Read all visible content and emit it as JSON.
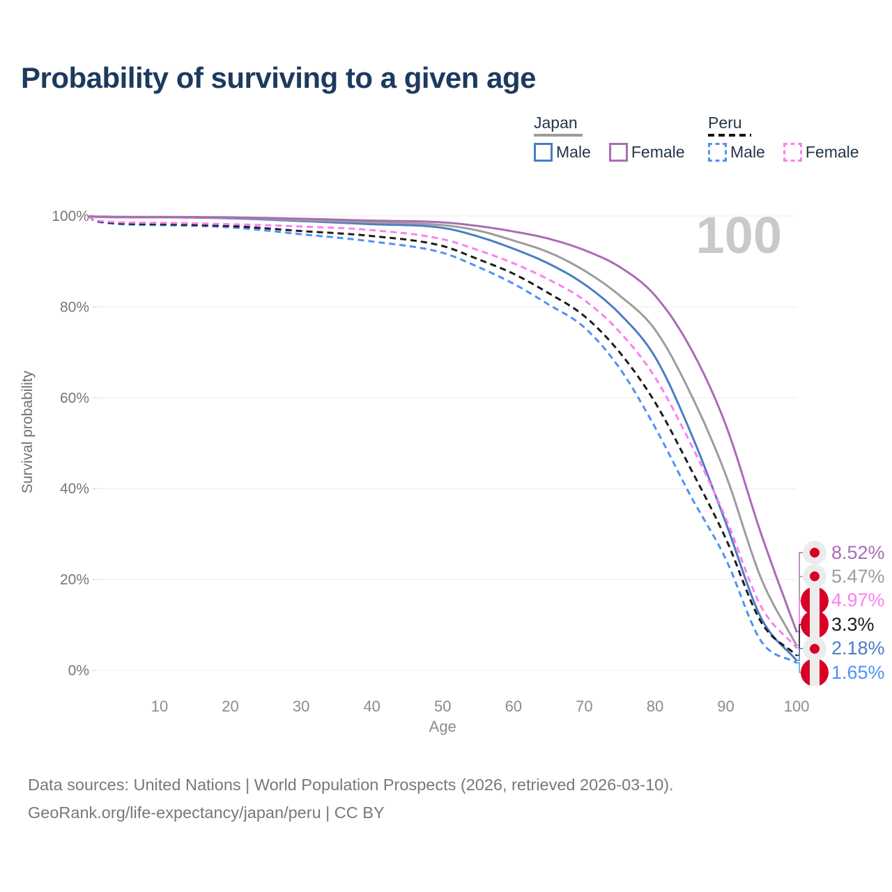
{
  "title": "Probability of surviving to a given age",
  "watermark": "100",
  "legend": {
    "japan": {
      "label": "Japan",
      "male": "Male",
      "female": "Female"
    },
    "peru": {
      "label": "Peru",
      "male": "Male",
      "female": "Female"
    }
  },
  "footer": {
    "line1": "Data sources: United Nations | World Population Prospects (2026, retrieved 2026-03-10).",
    "line2": "GeoRank.org/life-expectancy/japan/peru | CC BY"
  },
  "colors": {
    "title_navy": "#1d3a5f",
    "japan_female": "#a96cb3",
    "japan_all": "#9c9c9c",
    "japan_male": "#4b7cc4",
    "peru_female": "#fd7ff1",
    "peru_all": "#1c1c1c",
    "peru_male": "#4e92f5",
    "flag_red": "#d80027",
    "flag_bg": "#ececec",
    "gridline": "#ececec",
    "axis_text": "#767676",
    "watermark_gray": "#c9c9c9"
  },
  "chart_data": {
    "type": "line",
    "xlabel": "Age",
    "ylabel": "Survival probability",
    "x_range": [
      0,
      100
    ],
    "y_range_pct": [
      0,
      100
    ],
    "grid": true,
    "x_ticks": [
      {
        "v": 10,
        "label": "10"
      },
      {
        "v": 20,
        "label": "20"
      },
      {
        "v": 30,
        "label": "30"
      },
      {
        "v": 40,
        "label": "40"
      },
      {
        "v": 50,
        "label": "50"
      },
      {
        "v": 60,
        "label": "60"
      },
      {
        "v": 70,
        "label": "70"
      },
      {
        "v": 80,
        "label": "80"
      },
      {
        "v": 90,
        "label": "90"
      },
      {
        "v": 100,
        "label": "100"
      }
    ],
    "y_ticks": [
      {
        "v": 0,
        "label": "0%"
      },
      {
        "v": 20,
        "label": "20%"
      },
      {
        "v": 40,
        "label": "40%"
      },
      {
        "v": 60,
        "label": "60%"
      },
      {
        "v": 80,
        "label": "80%"
      },
      {
        "v": 100,
        "label": "100%"
      }
    ],
    "ages": [
      0,
      1,
      10,
      20,
      30,
      40,
      50,
      55,
      60,
      65,
      70,
      75,
      80,
      85,
      90,
      95,
      100
    ],
    "series": [
      {
        "id": "japan-male",
        "name": "Japan Male",
        "country": "Japan",
        "sex": "male",
        "color_key": "japan_male",
        "dashed": false,
        "flag": "japan",
        "end_label": "2.18%",
        "values": [
          100,
          99.8,
          99.7,
          99.5,
          98.9,
          98.2,
          97.4,
          95.5,
          92.8,
          89.5,
          85.0,
          78.5,
          69.0,
          52.5,
          32.5,
          11.5,
          2.18
        ]
      },
      {
        "id": "peru-male",
        "name": "Peru Male",
        "country": "Peru",
        "sex": "male",
        "color_key": "peru_male",
        "dashed": true,
        "flag": "peru",
        "end_label": "1.65%",
        "values": [
          100,
          98.8,
          98.0,
          97.5,
          96.0,
          94.4,
          91.9,
          88.8,
          85.1,
          80.5,
          75.5,
          66.5,
          53.5,
          38.5,
          24.5,
          6.4,
          1.65
        ]
      },
      {
        "id": "peru-all",
        "name": "Peru",
        "country": "Peru",
        "sex": "both",
        "color_key": "peru_all",
        "dashed": true,
        "flag": "peru",
        "end_label": "3.3%",
        "values": [
          100,
          98.9,
          98.2,
          97.8,
          96.7,
          95.6,
          93.4,
          90.5,
          87.3,
          83.0,
          78.0,
          70.0,
          59.0,
          44.5,
          29.0,
          10.6,
          3.3
        ]
      },
      {
        "id": "peru-female",
        "name": "Peru Female",
        "country": "Peru",
        "sex": "female",
        "color_key": "peru_female",
        "dashed": true,
        "flag": "peru",
        "end_label": "4.97%",
        "values": [
          100,
          99.0,
          98.5,
          98.2,
          97.7,
          96.9,
          94.9,
          92.5,
          89.6,
          86.0,
          81.5,
          74.5,
          64.5,
          50.0,
          33.5,
          14.0,
          4.97
        ]
      },
      {
        "id": "japan-all",
        "name": "Japan",
        "country": "Japan",
        "sex": "both",
        "color_key": "japan_all",
        "dashed": false,
        "flag": "japan",
        "end_label": "5.47%",
        "values": [
          100,
          99.8,
          99.7,
          99.6,
          99.1,
          98.6,
          98.0,
          96.8,
          94.6,
          92.0,
          88.0,
          82.5,
          75.0,
          61.0,
          43.0,
          20.2,
          5.47
        ]
      },
      {
        "id": "japan-female",
        "name": "Japan Female",
        "country": "Japan",
        "sex": "female",
        "color_key": "japan_female",
        "dashed": false,
        "flag": "japan",
        "end_label": "8.52%",
        "values": [
          100,
          99.9,
          99.8,
          99.7,
          99.4,
          99.0,
          98.6,
          97.8,
          96.6,
          95.0,
          92.5,
          88.8,
          82.5,
          71.0,
          54.0,
          30.0,
          8.52
        ]
      }
    ]
  }
}
